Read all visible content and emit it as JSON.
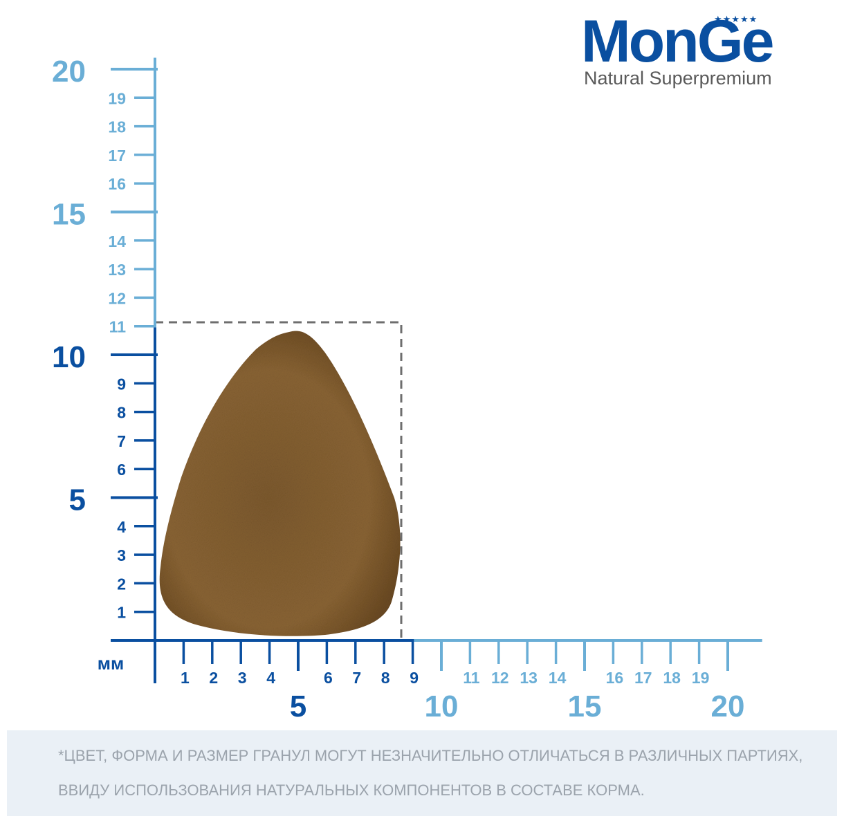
{
  "brand": {
    "name": "MonGe",
    "stars": "★★★★★",
    "tagline": "Natural Superpremium"
  },
  "scale": {
    "unit": "мм",
    "vertical_ticks": [
      "20",
      "19",
      "18",
      "17",
      "16",
      "15",
      "14",
      "13",
      "12",
      "11",
      "10",
      "9",
      "8",
      "7",
      "6",
      "5",
      "4",
      "3",
      "2",
      "1"
    ],
    "horizontal_ticks": [
      "1",
      "2",
      "3",
      "4",
      "5",
      "6",
      "7",
      "8",
      "9",
      "10",
      "11",
      "12",
      "13",
      "14",
      "15",
      "16",
      "17",
      "18",
      "19",
      "20"
    ],
    "kibble_width_mm": 9,
    "kibble_height_mm": 11,
    "colors": {
      "light_blue": "#6aaed6",
      "dark_blue": "#0a4fa0",
      "dashed_box": "#6e6e6e",
      "kibble": "#8a6434"
    }
  },
  "disclaimer": {
    "line1": "*ЦВЕТ, ФОРМА И РАЗМЕР ГРАНУЛ МОГУТ НЕЗНАЧИТЕЛЬНО ОТЛИЧАТЬСЯ В РАЗЛИЧНЫХ ПАРТИЯХ,",
    "line2": "ВВИДУ ИСПОЛЬЗОВАНИЯ НАТУРАЛЬНЫХ КОМПОНЕНТОВ В СОСТАВЕ КОРМА."
  }
}
